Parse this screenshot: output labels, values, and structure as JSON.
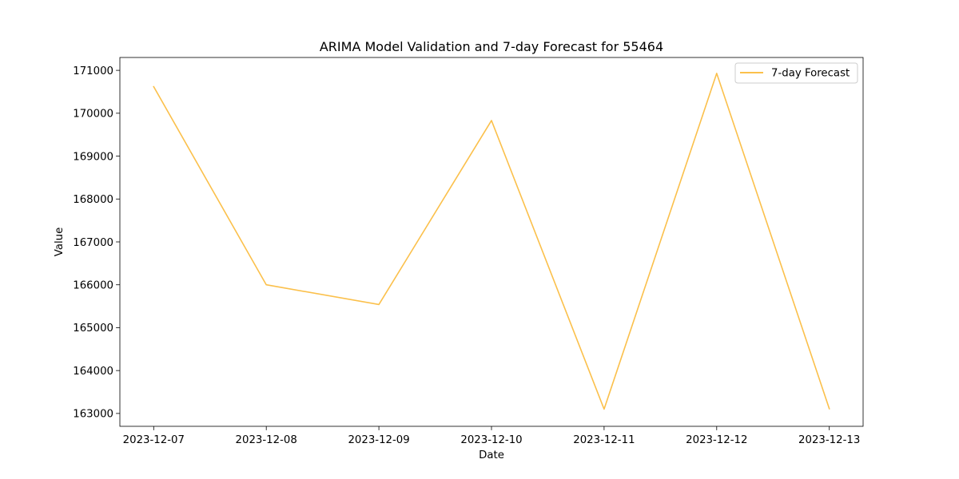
{
  "chart_data": {
    "type": "line",
    "title": "ARIMA Model Validation and 7-day Forecast for 55464",
    "xlabel": "Date",
    "ylabel": "Value",
    "x": [
      "2023-12-07",
      "2023-12-08",
      "2023-12-09",
      "2023-12-10",
      "2023-12-11",
      "2023-12-12",
      "2023-12-13"
    ],
    "xticks": [
      "2023-12-07",
      "2023-12-08",
      "2023-12-09",
      "2023-12-10",
      "2023-12-11",
      "2023-12-12",
      "2023-12-13"
    ],
    "yticks": [
      163000,
      164000,
      165000,
      166000,
      167000,
      168000,
      169000,
      170000,
      171000
    ],
    "ylim": [
      162700,
      171300
    ],
    "grid": false,
    "legend_position": "top-right",
    "series": [
      {
        "name": "7-day Forecast",
        "color": "#FBC04B",
        "values": [
          170620,
          166000,
          165540,
          169830,
          163100,
          170930,
          163110
        ]
      }
    ]
  }
}
